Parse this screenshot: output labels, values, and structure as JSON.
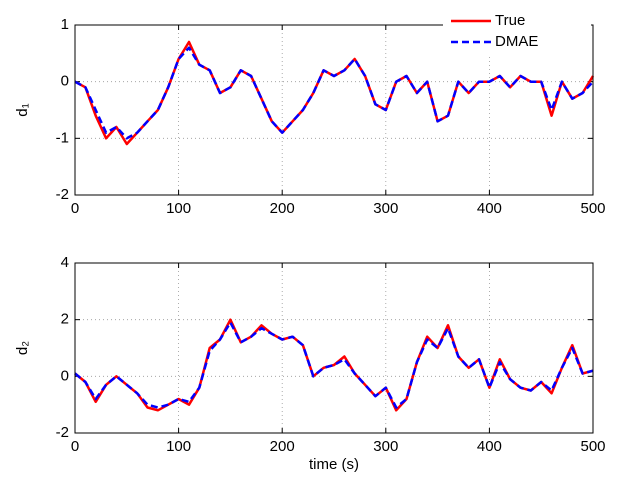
{
  "chart_data": [
    {
      "type": "line",
      "ylabel": "d₁",
      "x": [
        0,
        10,
        20,
        30,
        40,
        50,
        60,
        70,
        80,
        90,
        100,
        110,
        120,
        130,
        140,
        150,
        160,
        170,
        180,
        190,
        200,
        210,
        220,
        230,
        240,
        250,
        260,
        270,
        280,
        290,
        300,
        310,
        320,
        330,
        340,
        350,
        360,
        370,
        380,
        390,
        400,
        410,
        420,
        430,
        440,
        450,
        460,
        470,
        480,
        490,
        500
      ],
      "series": [
        {
          "name": "True",
          "color": "#ff0000",
          "dash": false,
          "values": [
            0,
            -0.1,
            -0.6,
            -1.0,
            -0.8,
            -1.1,
            -0.9,
            -0.7,
            -0.5,
            -0.1,
            0.4,
            0.7,
            0.3,
            0.2,
            -0.2,
            -0.1,
            0.2,
            0.1,
            -0.3,
            -0.7,
            -0.9,
            -0.7,
            -0.5,
            -0.2,
            0.2,
            0.1,
            0.2,
            0.4,
            0.1,
            -0.4,
            -0.5,
            0.0,
            0.1,
            -0.2,
            0.0,
            -0.7,
            -0.6,
            0.0,
            -0.2,
            0.0,
            0.0,
            0.1,
            -0.1,
            0.1,
            0.0,
            0.0,
            -0.6,
            0.0,
            -0.3,
            -0.2,
            0.1
          ]
        },
        {
          "name": "DMAE",
          "color": "#0000ff",
          "dash": true,
          "values": [
            0,
            -0.1,
            -0.5,
            -0.9,
            -0.8,
            -1.0,
            -0.9,
            -0.7,
            -0.5,
            -0.1,
            0.4,
            0.6,
            0.3,
            0.2,
            -0.2,
            -0.1,
            0.2,
            0.1,
            -0.3,
            -0.7,
            -0.9,
            -0.7,
            -0.5,
            -0.2,
            0.2,
            0.1,
            0.2,
            0.4,
            0.1,
            -0.4,
            -0.5,
            0.0,
            0.1,
            -0.2,
            0.0,
            -0.7,
            -0.6,
            0.0,
            -0.2,
            0.0,
            0.0,
            0.1,
            -0.1,
            0.1,
            0.0,
            0.0,
            -0.5,
            0.0,
            -0.3,
            -0.2,
            0.0
          ]
        }
      ],
      "xlim": [
        0,
        500
      ],
      "xticks": [
        0,
        100,
        200,
        300,
        400,
        500
      ],
      "ylim": [
        -2,
        1
      ],
      "yticks": [
        -2,
        -1,
        0,
        1
      ],
      "grid": true,
      "legend": "northeast"
    },
    {
      "type": "line",
      "ylabel": "d₂",
      "xlabel": "time (s)",
      "x": [
        0,
        10,
        20,
        30,
        40,
        50,
        60,
        70,
        80,
        90,
        100,
        110,
        120,
        130,
        140,
        150,
        160,
        170,
        180,
        190,
        200,
        210,
        220,
        230,
        240,
        250,
        260,
        270,
        280,
        290,
        300,
        310,
        320,
        330,
        340,
        350,
        360,
        370,
        380,
        390,
        400,
        410,
        420,
        430,
        440,
        450,
        460,
        470,
        480,
        490,
        500
      ],
      "series": [
        {
          "name": "True",
          "color": "#ff0000",
          "dash": false,
          "values": [
            0.1,
            -0.2,
            -0.9,
            -0.3,
            0.0,
            -0.3,
            -0.6,
            -1.1,
            -1.2,
            -1.0,
            -0.8,
            -1.0,
            -0.4,
            1.0,
            1.3,
            2.0,
            1.2,
            1.4,
            1.8,
            1.5,
            1.3,
            1.4,
            1.1,
            0.0,
            0.3,
            0.4,
            0.7,
            0.1,
            -0.3,
            -0.7,
            -0.4,
            -1.2,
            -0.8,
            0.5,
            1.4,
            1.0,
            1.8,
            0.7,
            0.3,
            0.6,
            -0.4,
            0.6,
            -0.1,
            -0.4,
            -0.5,
            -0.2,
            -0.6,
            0.3,
            1.1,
            0.1,
            0.2
          ]
        },
        {
          "name": "DMAE",
          "color": "#0000ff",
          "dash": true,
          "values": [
            0.1,
            -0.2,
            -0.8,
            -0.3,
            0.0,
            -0.3,
            -0.6,
            -1.0,
            -1.1,
            -1.0,
            -0.8,
            -0.9,
            -0.4,
            0.9,
            1.3,
            1.9,
            1.2,
            1.4,
            1.7,
            1.5,
            1.3,
            1.4,
            1.1,
            0.0,
            0.3,
            0.4,
            0.6,
            0.1,
            -0.3,
            -0.7,
            -0.4,
            -1.1,
            -0.8,
            0.5,
            1.3,
            1.0,
            1.7,
            0.7,
            0.3,
            0.6,
            -0.4,
            0.5,
            -0.1,
            -0.4,
            -0.5,
            -0.2,
            -0.5,
            0.3,
            1.0,
            0.1,
            0.2
          ]
        }
      ],
      "xlim": [
        0,
        500
      ],
      "xticks": [
        0,
        100,
        200,
        300,
        400,
        500
      ],
      "ylim": [
        -2,
        4
      ],
      "yticks": [
        -2,
        0,
        2,
        4
      ],
      "grid": true
    }
  ]
}
